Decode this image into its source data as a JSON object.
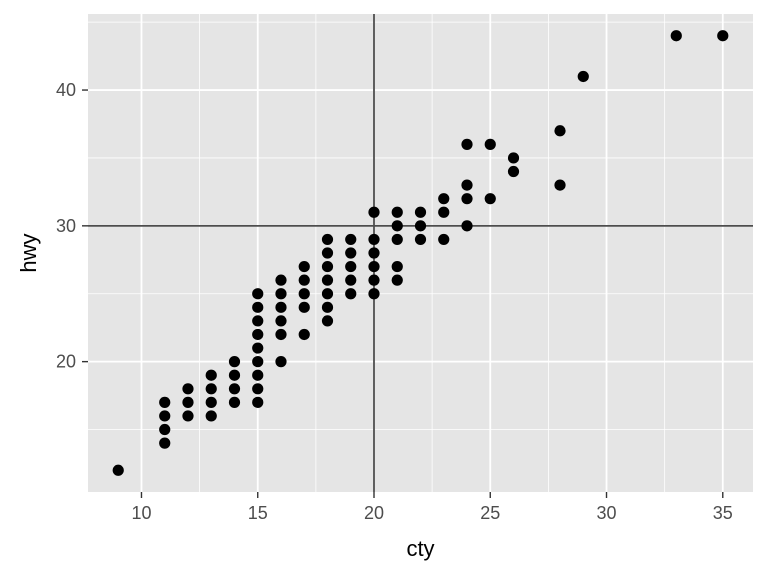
{
  "chart_data": {
    "type": "scatter",
    "title": "",
    "xlabel": "cty",
    "ylabel": "hwy",
    "xlim": [
      7.7,
      36.3
    ],
    "ylim": [
      10.4,
      45.6
    ],
    "x_ticks": [
      10,
      15,
      20,
      25,
      30,
      35
    ],
    "y_ticks": [
      20,
      30,
      40
    ],
    "x_tick_labels": [
      "10",
      "15",
      "20",
      "25",
      "30",
      "35"
    ],
    "y_tick_labels": [
      "20",
      "30",
      "40"
    ],
    "grid": true,
    "reference_lines": {
      "vertical_x": 20,
      "horizontal_y": 30
    },
    "colors": {
      "panel_background": "#e5e5e5",
      "grid": "#ffffff",
      "point": "#000000",
      "reference_line": "#4d4d4d",
      "tick_text": "#4d4d4d",
      "axis_title": "#000000"
    },
    "points": [
      {
        "x": 9,
        "y": 12
      },
      {
        "x": 11,
        "y": 14
      },
      {
        "x": 11,
        "y": 15
      },
      {
        "x": 11,
        "y": 16
      },
      {
        "x": 11,
        "y": 17
      },
      {
        "x": 12,
        "y": 16
      },
      {
        "x": 12,
        "y": 17
      },
      {
        "x": 12,
        "y": 18
      },
      {
        "x": 13,
        "y": 16
      },
      {
        "x": 13,
        "y": 17
      },
      {
        "x": 13,
        "y": 18
      },
      {
        "x": 13,
        "y": 19
      },
      {
        "x": 14,
        "y": 17
      },
      {
        "x": 14,
        "y": 18
      },
      {
        "x": 14,
        "y": 19
      },
      {
        "x": 14,
        "y": 20
      },
      {
        "x": 15,
        "y": 17
      },
      {
        "x": 15,
        "y": 18
      },
      {
        "x": 15,
        "y": 19
      },
      {
        "x": 15,
        "y": 20
      },
      {
        "x": 15,
        "y": 21
      },
      {
        "x": 15,
        "y": 22
      },
      {
        "x": 15,
        "y": 23
      },
      {
        "x": 15,
        "y": 24
      },
      {
        "x": 15,
        "y": 25
      },
      {
        "x": 16,
        "y": 20
      },
      {
        "x": 16,
        "y": 22
      },
      {
        "x": 16,
        "y": 23
      },
      {
        "x": 16,
        "y": 24
      },
      {
        "x": 16,
        "y": 25
      },
      {
        "x": 16,
        "y": 26
      },
      {
        "x": 17,
        "y": 22
      },
      {
        "x": 17,
        "y": 24
      },
      {
        "x": 17,
        "y": 25
      },
      {
        "x": 17,
        "y": 26
      },
      {
        "x": 17,
        "y": 27
      },
      {
        "x": 18,
        "y": 23
      },
      {
        "x": 18,
        "y": 24
      },
      {
        "x": 18,
        "y": 25
      },
      {
        "x": 18,
        "y": 26
      },
      {
        "x": 18,
        "y": 27
      },
      {
        "x": 18,
        "y": 28
      },
      {
        "x": 18,
        "y": 29
      },
      {
        "x": 19,
        "y": 25
      },
      {
        "x": 19,
        "y": 26
      },
      {
        "x": 19,
        "y": 27
      },
      {
        "x": 19,
        "y": 28
      },
      {
        "x": 19,
        "y": 29
      },
      {
        "x": 20,
        "y": 25
      },
      {
        "x": 20,
        "y": 26
      },
      {
        "x": 20,
        "y": 27
      },
      {
        "x": 20,
        "y": 28
      },
      {
        "x": 20,
        "y": 29
      },
      {
        "x": 20,
        "y": 31
      },
      {
        "x": 21,
        "y": 26
      },
      {
        "x": 21,
        "y": 27
      },
      {
        "x": 21,
        "y": 29
      },
      {
        "x": 21,
        "y": 30
      },
      {
        "x": 21,
        "y": 31
      },
      {
        "x": 22,
        "y": 29
      },
      {
        "x": 22,
        "y": 30
      },
      {
        "x": 22,
        "y": 31
      },
      {
        "x": 23,
        "y": 29
      },
      {
        "x": 23,
        "y": 31
      },
      {
        "x": 23,
        "y": 32
      },
      {
        "x": 24,
        "y": 30
      },
      {
        "x": 24,
        "y": 32
      },
      {
        "x": 24,
        "y": 33
      },
      {
        "x": 24,
        "y": 36
      },
      {
        "x": 25,
        "y": 32
      },
      {
        "x": 25,
        "y": 36
      },
      {
        "x": 26,
        "y": 34
      },
      {
        "x": 26,
        "y": 35
      },
      {
        "x": 28,
        "y": 33
      },
      {
        "x": 28,
        "y": 37
      },
      {
        "x": 29,
        "y": 41
      },
      {
        "x": 33,
        "y": 44
      },
      {
        "x": 35,
        "y": 44
      }
    ]
  }
}
